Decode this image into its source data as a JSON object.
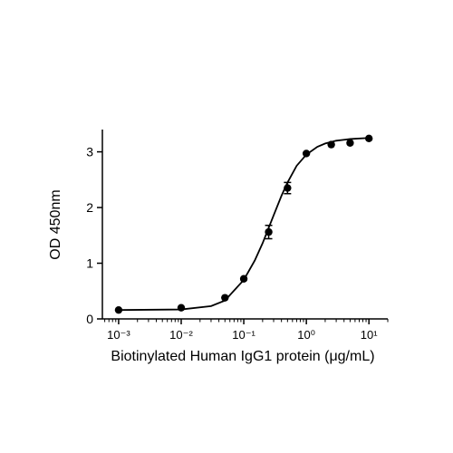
{
  "chart_data": {
    "type": "scatter",
    "x_label": "Biotinylated Human IgG1 protein (μg/mL)",
    "y_label": "OD 450nm",
    "x": [
      0.001,
      0.01,
      0.05,
      0.1,
      0.25,
      0.5,
      1,
      2.5,
      5,
      10
    ],
    "values": [
      0.16,
      0.2,
      0.38,
      0.72,
      1.56,
      2.35,
      2.97,
      3.13,
      3.16,
      3.24
    ],
    "errors": [
      null,
      null,
      null,
      null,
      0.12,
      0.1,
      null,
      null,
      null,
      null
    ],
    "color": "#000000",
    "curve": {
      "x": [
        0.001,
        0.01,
        0.03,
        0.05,
        0.1,
        0.15,
        0.2,
        0.3,
        0.4,
        0.5,
        0.7,
        1,
        1.5,
        2,
        3,
        5,
        10
      ],
      "values": [
        0.16,
        0.17,
        0.23,
        0.33,
        0.7,
        1.05,
        1.36,
        1.86,
        2.21,
        2.45,
        2.75,
        2.95,
        3.09,
        3.15,
        3.2,
        3.23,
        3.25
      ]
    },
    "xscale": "log",
    "xlim": [
      0.00055,
      20
    ],
    "ylim": [
      0,
      3.4
    ],
    "xticks": [
      {
        "value": 0.001,
        "label": "10⁻³"
      },
      {
        "value": 0.01,
        "label": "10⁻²"
      },
      {
        "value": 0.1,
        "label": "10⁻¹"
      },
      {
        "value": 1,
        "label": "10⁰"
      },
      {
        "value": 10,
        "label": "10¹"
      }
    ],
    "yticks": [
      0,
      1,
      2,
      3
    ]
  }
}
